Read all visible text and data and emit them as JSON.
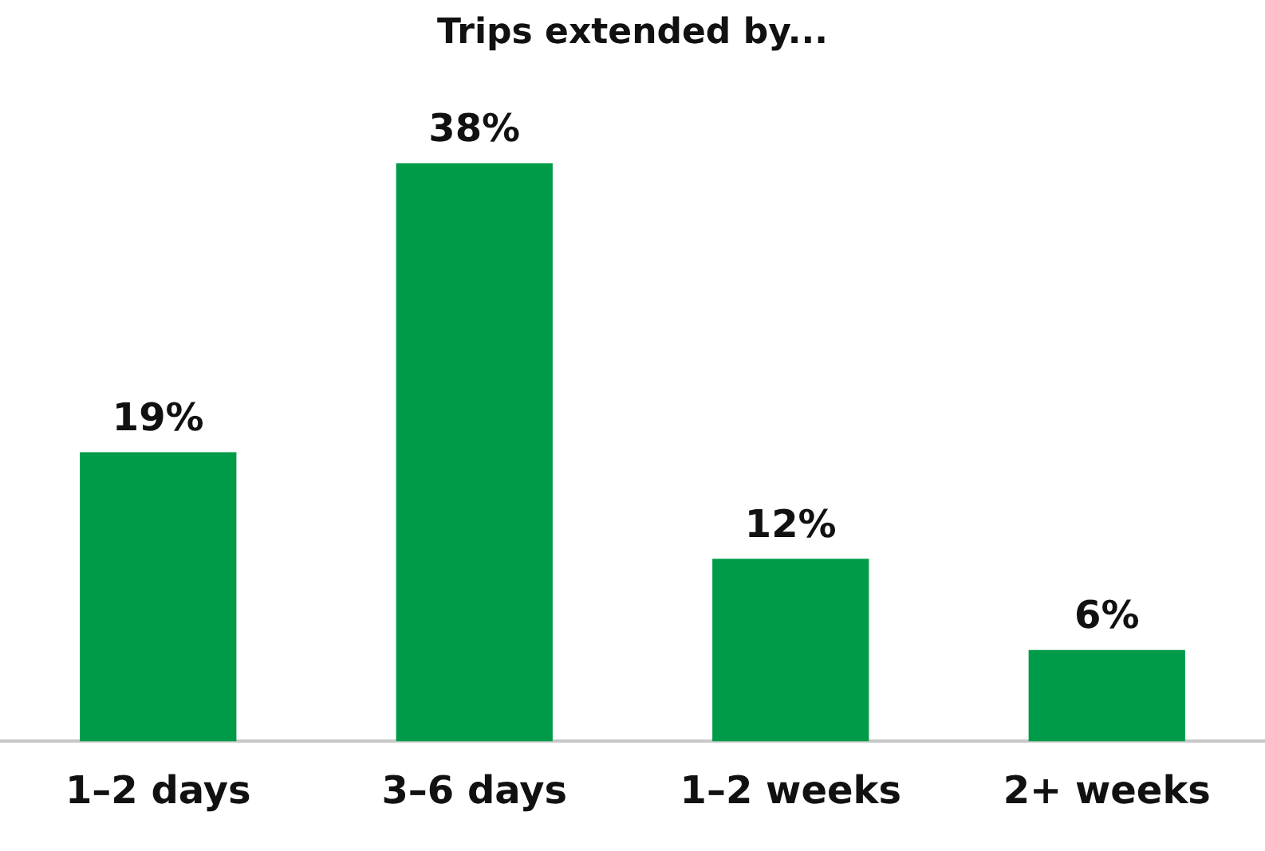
{
  "chart_data": {
    "type": "bar",
    "title": "Trips extended by...",
    "categories": [
      "1–2 days",
      "3–6 days",
      "1–2 weeks",
      "2+ weeks"
    ],
    "values": [
      19,
      38,
      12,
      6
    ],
    "color": "#009b48",
    "value_labels": [
      "19%",
      "38%",
      "12%",
      "6%"
    ],
    "grid": false,
    "legend": false
  }
}
